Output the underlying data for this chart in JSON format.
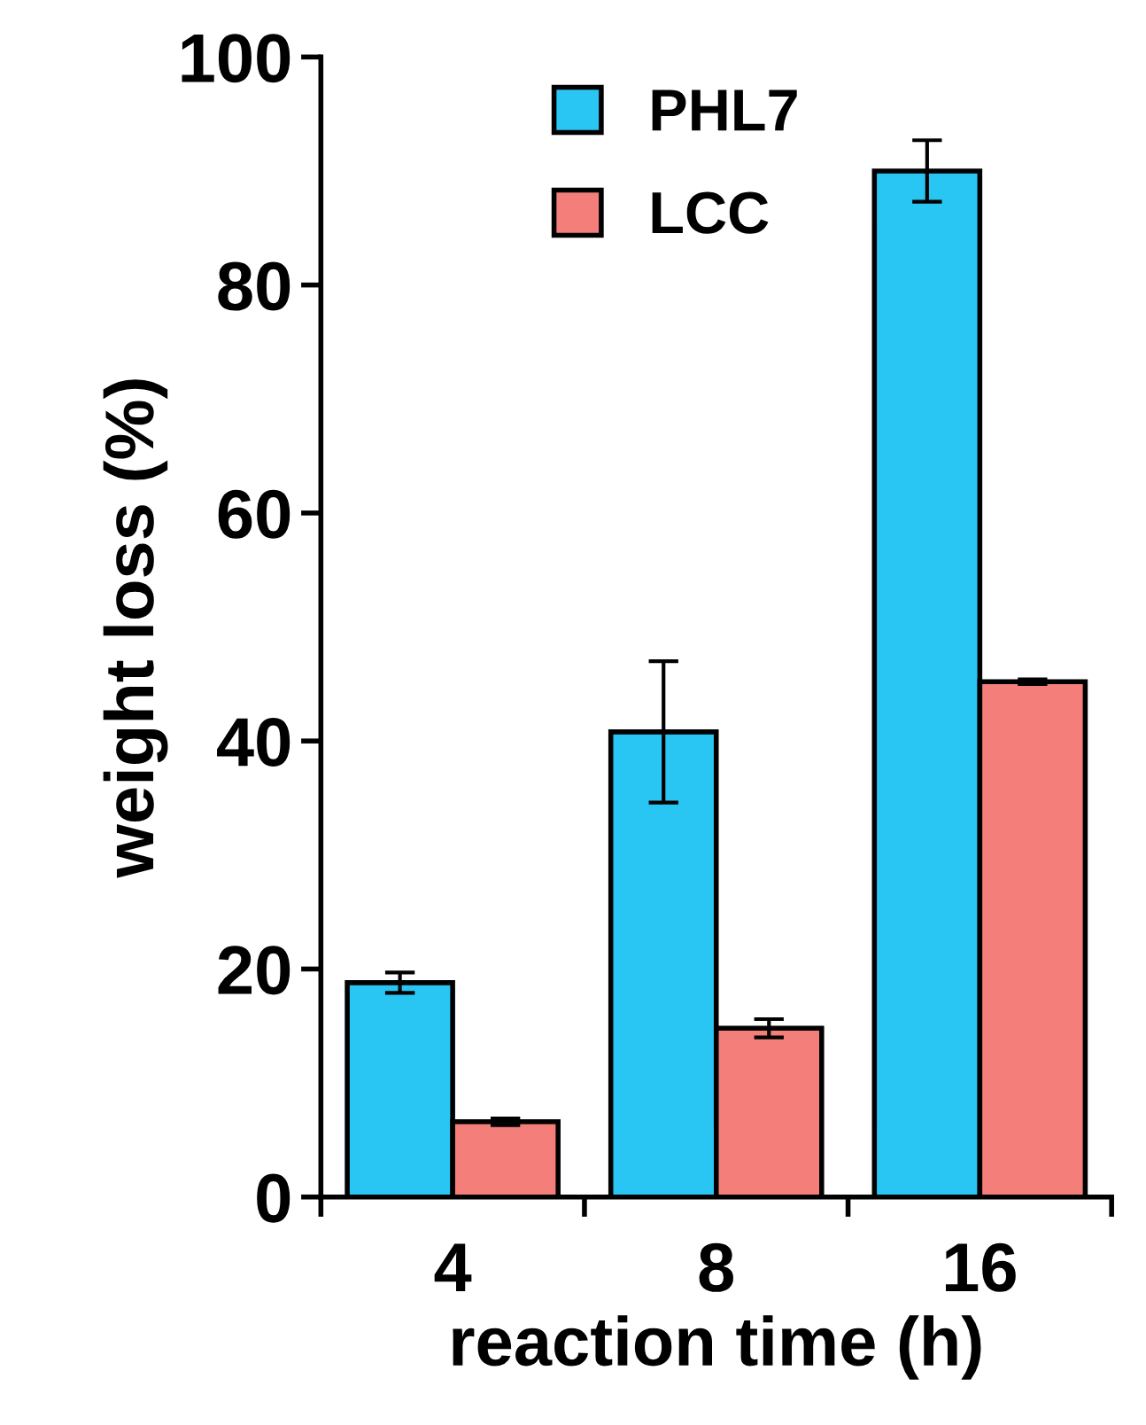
{
  "chart_data": {
    "type": "bar",
    "xlabel": "reaction time (h)",
    "ylabel": "weight loss (%)",
    "categories": [
      "4",
      "8",
      "16"
    ],
    "series": [
      {
        "name": "PHL7",
        "color": "#29c6f4",
        "values": [
          18.8,
          40.8,
          90.0
        ],
        "errors": [
          0.9,
          6.2,
          2.7
        ]
      },
      {
        "name": "LCC",
        "color": "#f47f7a",
        "values": [
          6.6,
          14.8,
          45.2
        ],
        "errors": [
          0.3,
          0.8,
          0.2
        ]
      }
    ],
    "ylim": [
      0,
      100
    ],
    "yticks": [
      0,
      20,
      40,
      60,
      80,
      100
    ],
    "grid": false,
    "legend": "top"
  }
}
